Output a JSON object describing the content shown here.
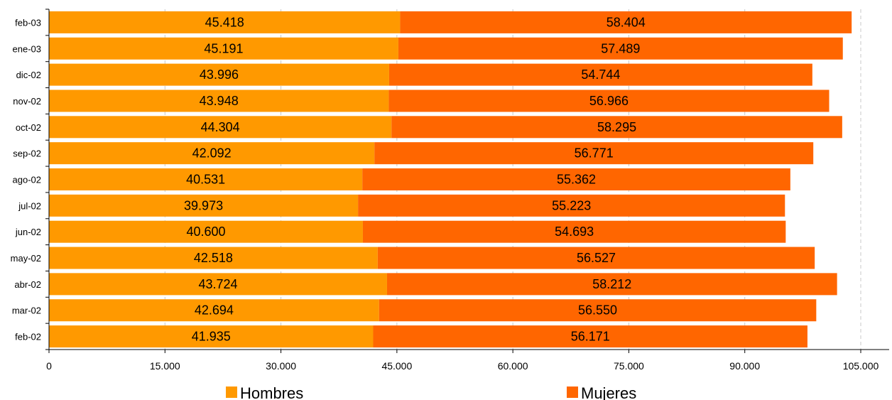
{
  "chart_data": {
    "type": "bar",
    "orientation": "horizontal",
    "stacked": true,
    "categories": [
      "feb-02",
      "mar-02",
      "abr-02",
      "may-02",
      "jun-02",
      "jul-02",
      "ago-02",
      "sep-02",
      "oct-02",
      "nov-02",
      "dic-02",
      "ene-03",
      "feb-03"
    ],
    "series": [
      {
        "name": "Hombres",
        "color": "#ff9900",
        "values": [
          41935,
          42694,
          43724,
          42518,
          40600,
          39973,
          40531,
          42092,
          44304,
          43948,
          43996,
          45191,
          45418
        ],
        "labels": [
          "41.935",
          "42.694",
          "43.724",
          "42.518",
          "40.600",
          "39.973",
          "40.531",
          "42.092",
          "44.304",
          "43.948",
          "43.996",
          "45.191",
          "45.418"
        ]
      },
      {
        "name": "Mujeres",
        "color": "#ff6600",
        "values": [
          56171,
          56550,
          58212,
          56527,
          54693,
          55223,
          55362,
          56771,
          58295,
          56966,
          54744,
          57489,
          58404
        ],
        "labels": [
          "56.171",
          "56.550",
          "58.212",
          "56.527",
          "54.693",
          "55.223",
          "55.362",
          "56.771",
          "58.295",
          "56.966",
          "54.744",
          "57.489",
          "58.404"
        ]
      }
    ],
    "xlim": [
      0,
      105000
    ],
    "x_ticks": [
      0,
      15000,
      30000,
      45000,
      60000,
      75000,
      90000,
      105000
    ],
    "x_tick_labels": [
      "0",
      "15.000",
      "30.000",
      "45.000",
      "60.000",
      "75.000",
      "90.000",
      "105.000"
    ],
    "grid": "vertical",
    "legend_position": "bottom"
  }
}
